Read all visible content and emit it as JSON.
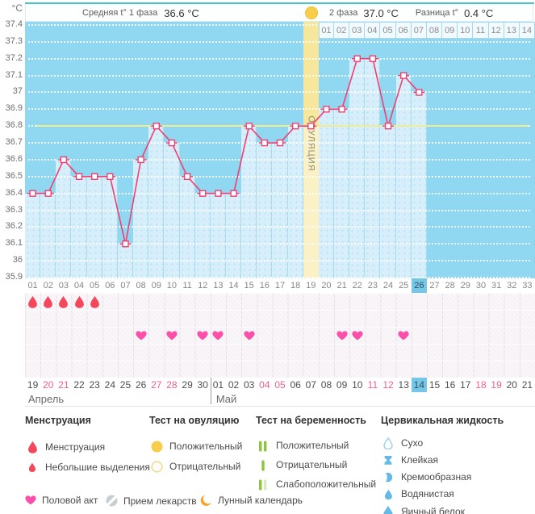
{
  "header": {
    "unit_label": "°C",
    "avg_phase1_label": "Средняя t° 1 фаза",
    "avg_phase1_value": "36.6 °C",
    "phase2_label": "2 фаза",
    "phase2_value": "37.0 °C",
    "diff_label": "Разница t°",
    "diff_value": "0.4 °C"
  },
  "chart_data": {
    "type": "line",
    "title": "",
    "xlabel": "",
    "ylabel": "°C",
    "ylim": [
      35.9,
      37.4
    ],
    "ytick_step": 0.1,
    "yticks": [
      "37.4",
      "37.3",
      "37.2",
      "37.1",
      "37",
      "36.9",
      "36.8",
      "36.7",
      "36.6",
      "36.5",
      "36.4",
      "36.3",
      "36.2",
      "36.1",
      "36",
      "35.9"
    ],
    "day_labels": [
      "01",
      "02",
      "03",
      "04",
      "05",
      "06",
      "07",
      "08",
      "09",
      "10",
      "11",
      "12",
      "13",
      "14",
      "15",
      "16",
      "17",
      "18",
      "19",
      "20",
      "21",
      "22",
      "23",
      "24",
      "25",
      "26",
      "27",
      "28",
      "29",
      "30",
      "31",
      "32",
      "33"
    ],
    "temps": [
      36.4,
      36.4,
      36.6,
      36.5,
      36.5,
      36.5,
      36.1,
      36.6,
      36.8,
      36.7,
      36.5,
      36.4,
      36.4,
      36.4,
      36.8,
      36.7,
      36.7,
      36.8,
      36.8,
      36.9,
      36.9,
      37.2,
      37.2,
      36.8,
      37.1,
      37.0,
      null,
      null,
      null,
      null,
      null,
      null,
      null
    ],
    "coverline": 36.8,
    "ovulation_day": 19,
    "ovulation_band_label": "ОВУЛЯЦИЯ",
    "current_cycle_day": 26,
    "phase2_day_labels": [
      "01",
      "02",
      "03",
      "04",
      "05",
      "06",
      "07",
      "08",
      "09",
      "10",
      "11",
      "12",
      "13",
      "14"
    ],
    "grid": "dotted-horizontal",
    "legend_position": "bottom"
  },
  "tracker": {
    "menstruation_days": [
      1,
      2,
      3,
      4,
      5
    ],
    "intercourse_days": [
      8,
      10,
      12,
      13,
      15,
      21,
      22,
      25
    ],
    "rows": 5
  },
  "calendar": {
    "month_split_index": 12,
    "today_index": 25,
    "months": [
      {
        "label": "Апрель"
      },
      {
        "label": "Май"
      }
    ],
    "dates": [
      {
        "label": "19",
        "weekend": false
      },
      {
        "label": "20",
        "weekend": true
      },
      {
        "label": "21",
        "weekend": true
      },
      {
        "label": "22",
        "weekend": false
      },
      {
        "label": "23",
        "weekend": false
      },
      {
        "label": "24",
        "weekend": false
      },
      {
        "label": "25",
        "weekend": false
      },
      {
        "label": "26",
        "weekend": false
      },
      {
        "label": "27",
        "weekend": true
      },
      {
        "label": "28",
        "weekend": true
      },
      {
        "label": "29",
        "weekend": false
      },
      {
        "label": "30",
        "weekend": false
      },
      {
        "label": "01",
        "weekend": false
      },
      {
        "label": "02",
        "weekend": false
      },
      {
        "label": "03",
        "weekend": false
      },
      {
        "label": "04",
        "weekend": true
      },
      {
        "label": "05",
        "weekend": true
      },
      {
        "label": "06",
        "weekend": false
      },
      {
        "label": "07",
        "weekend": false
      },
      {
        "label": "08",
        "weekend": false
      },
      {
        "label": "09",
        "weekend": false
      },
      {
        "label": "10",
        "weekend": false
      },
      {
        "label": "11",
        "weekend": true
      },
      {
        "label": "12",
        "weekend": true
      },
      {
        "label": "13",
        "weekend": false
      },
      {
        "label": "14",
        "weekend": false
      },
      {
        "label": "15",
        "weekend": false
      },
      {
        "label": "16",
        "weekend": false
      },
      {
        "label": "17",
        "weekend": false
      },
      {
        "label": "18",
        "weekend": true
      },
      {
        "label": "19",
        "weekend": true
      },
      {
        "label": "20",
        "weekend": false
      },
      {
        "label": "21",
        "weekend": false
      }
    ]
  },
  "legend": {
    "sections": [
      {
        "title": "Менструация",
        "items": [
          {
            "icon": "drop",
            "name": "menstruation-drop-icon",
            "label": "Менструация"
          },
          {
            "icon": "drop-small",
            "name": "spotting-drop-icon",
            "label": "Небольшие выделения"
          }
        ]
      },
      {
        "title": "Тест на овуляцию",
        "items": [
          {
            "icon": "circle-filled",
            "name": "ovulation-positive-icon",
            "label": "Положительный"
          },
          {
            "icon": "circle-outline",
            "name": "ovulation-negative-icon",
            "label": "Отрицательный"
          }
        ]
      },
      {
        "title": "Тест на беременность",
        "items": [
          {
            "icon": "bars-2",
            "name": "pregnancy-positive-icon",
            "label": "Положительный"
          },
          {
            "icon": "bar-1",
            "name": "pregnancy-negative-icon",
            "label": "Отрицательный"
          },
          {
            "icon": "bars-weak",
            "name": "pregnancy-weak-positive-icon",
            "label": "Слабоположительный"
          }
        ]
      },
      {
        "title": "Цервикальная жидкость",
        "items": [
          {
            "icon": "drop-outline-blue",
            "name": "dry-icon",
            "label": "Сухо"
          },
          {
            "icon": "hourglass",
            "name": "sticky-icon",
            "label": "Клейкая"
          },
          {
            "icon": "crescent-blue",
            "name": "creamy-icon",
            "label": "Кремообразная"
          },
          {
            "icon": "drop-blue",
            "name": "watery-icon",
            "label": "Водянистая"
          },
          {
            "icon": "drop-big-blue",
            "name": "eggwhite-icon",
            "label": "Яичный белок"
          }
        ]
      }
    ],
    "footer_items": [
      {
        "icon": "heart",
        "name": "intercourse-heart-icon",
        "label": "Половой акт"
      },
      {
        "icon": "medication",
        "name": "medication-icon",
        "label": "Прием лекарств"
      },
      {
        "icon": "moon",
        "name": "moon-icon",
        "label": "Лунный календарь"
      }
    ]
  },
  "colors": {
    "accent_line": "#EE4071",
    "chart_bg": "#90D7F2",
    "bar_fill": "#D7EFFB",
    "ovulation_band": "#F6E79C",
    "ovulation_band_light": "#FAF1C6",
    "coverline": "#F3EC8F",
    "today_highlight": "#74C7E7",
    "menstruation_red": "#F4475C",
    "heart_pink": "#FB4FA9",
    "test_green": "#8CC63F",
    "test_green_pale": "#DCE9BC",
    "fluid_blue": "#64B9E6",
    "ovulation_yellow": "#F8CD4B",
    "moon_orange": "#F5A426",
    "medication_gray": "#C9CED2",
    "weekend_red": "#F25E8D",
    "top_accent": "#47C2C6"
  }
}
